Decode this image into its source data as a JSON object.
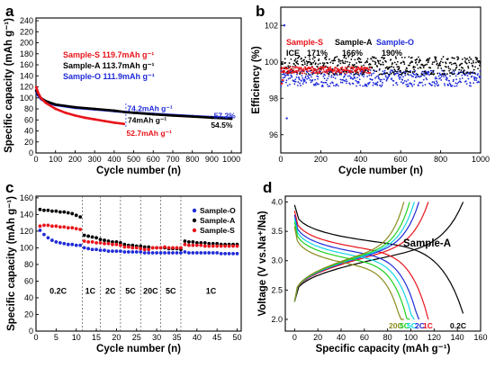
{
  "panels": {
    "a": "a",
    "b": "b",
    "c": "c",
    "d": "d"
  },
  "chart_data": [
    {
      "id": "a",
      "type": "line",
      "xlabel": "Cycle number (n)",
      "ylabel": "Specific capacity (mAh g⁻¹)",
      "xlim": [
        0,
        1050
      ],
      "ylim": [
        0,
        245
      ],
      "xticks": [
        0,
        100,
        200,
        300,
        400,
        500,
        600,
        700,
        800,
        900,
        1000
      ],
      "yticks": [
        0,
        20,
        40,
        60,
        80,
        100,
        120,
        140,
        160,
        180,
        200,
        220,
        240
      ],
      "legend": [
        {
          "text": "Sample-S 119.7mAh g⁻¹",
          "color": "#e8141b"
        },
        {
          "text": "Sample-A 113.7mAh g⁻¹",
          "color": "#000000"
        },
        {
          "text": "Sample-O 111.9mAh g⁻¹",
          "color": "#1f2bd8"
        }
      ],
      "annotations": [
        {
          "text": "74.2mAh g⁻¹",
          "x": 462,
          "y": 74,
          "color": "#1f2bd8"
        },
        {
          "text": "74mAh g⁻¹",
          "x": 470,
          "y": 57,
          "color": "#000000"
        },
        {
          "text": "52.7mAh g⁻¹",
          "x": 462,
          "y": 36,
          "color": "#e8141b"
        },
        {
          "text": "57.2%",
          "x": 905,
          "y": 67,
          "color": "#1f2bd8"
        },
        {
          "text": "54.5%",
          "x": 900,
          "y": 52,
          "color": "#000000"
        }
      ],
      "series": [
        {
          "name": "Sample-S",
          "color": "#e8141b",
          "x": [
            1,
            10,
            25,
            50,
            100,
            150,
            200,
            250,
            300,
            350,
            400,
            450
          ],
          "y": [
            119.7,
            110,
            100,
            91,
            80,
            73,
            68,
            64,
            61,
            58,
            55,
            52.7
          ]
        },
        {
          "name": "Sample-A",
          "color": "#000000",
          "x": [
            1,
            10,
            25,
            50,
            100,
            200,
            300,
            400,
            460,
            500,
            600,
            700,
            800,
            900,
            1000
          ],
          "y": [
            113.7,
            108,
            100,
            94,
            88,
            83,
            80,
            77,
            74,
            73,
            70,
            68,
            66,
            64,
            62
          ]
        },
        {
          "name": "Sample-O",
          "color": "#1f2bd8",
          "x": [
            1,
            10,
            25,
            50,
            100,
            200,
            300,
            400,
            460,
            500,
            600,
            700,
            800,
            900,
            1000
          ],
          "y": [
            111.9,
            105,
            98,
            92,
            87,
            82,
            79,
            76,
            74.2,
            73,
            71,
            69,
            67,
            65,
            64
          ]
        }
      ]
    },
    {
      "id": "b",
      "type": "scatter",
      "xlabel": "Cycle number (n)",
      "ylabel": "Efficiency (%)",
      "xlim": [
        0,
        1000
      ],
      "ylim": [
        95,
        103
      ],
      "xticks": [
        0,
        200,
        400,
        600,
        800,
        1000
      ],
      "yticks": [
        96,
        98,
        100,
        102
      ],
      "legend": [
        {
          "text": "Sample-S",
          "color": "#e8141b"
        },
        {
          "text": "Sample-A",
          "color": "#000000"
        },
        {
          "text": "Sample-O",
          "color": "#1f2bd8"
        }
      ],
      "ice_label": "ICE",
      "ice_values": [
        {
          "text": "171%",
          "color": "#000000"
        },
        {
          "text": "166%",
          "color": "#000000"
        },
        {
          "text": "190%",
          "color": "#000000"
        }
      ],
      "series": [
        {
          "name": "Sample-O",
          "color": "#1f2bd8",
          "x_range": [
            1,
            1000
          ],
          "center": 99.1,
          "spread": 0.45,
          "outliers": [
            [
              18,
              102
            ],
            [
              30,
              96.9
            ]
          ]
        },
        {
          "name": "Sample-A",
          "color": "#000000",
          "x_range": [
            1,
            1000
          ],
          "center": 99.8,
          "spread": 0.5,
          "outliers": []
        },
        {
          "name": "Sample-S",
          "color": "#e8141b",
          "x_range": [
            1,
            450
          ],
          "center": 99.55,
          "spread": 0.18,
          "outliers": [
            [
              5,
              98.8
            ],
            [
              10,
              99
            ]
          ]
        }
      ]
    },
    {
      "id": "c",
      "type": "scatter",
      "xlabel": "Cycle number (n)",
      "ylabel": "Specific capacity (mAh g⁻¹)",
      "xlim": [
        0,
        51
      ],
      "ylim": [
        0,
        162
      ],
      "xticks": [
        0,
        5,
        10,
        15,
        20,
        25,
        30,
        35,
        40,
        45,
        50
      ],
      "yticks": [
        0,
        20,
        40,
        60,
        80,
        100,
        120,
        140,
        160
      ],
      "rate_labels": [
        {
          "text": "0.2C",
          "x": 5.5
        },
        {
          "text": "1C",
          "x": 13.5
        },
        {
          "text": "2C",
          "x": 18.5
        },
        {
          "text": "5C",
          "x": 23.5
        },
        {
          "text": "20C",
          "x": 28.5
        },
        {
          "text": "5C",
          "x": 33.5
        },
        {
          "text": "1C",
          "x": 43.5
        }
      ],
      "dividers": [
        11.5,
        16,
        21,
        26,
        31,
        36
      ],
      "legend": [
        {
          "text": "Sample-O",
          "color": "#1f2bd8"
        },
        {
          "text": "Sample-A",
          "color": "#000000"
        },
        {
          "text": "Sample-S",
          "color": "#e8141b"
        }
      ],
      "series": [
        {
          "name": "Sample-O",
          "color": "#1f2bd8",
          "x": [
            1,
            2,
            3,
            4,
            5,
            6,
            7,
            8,
            9,
            10,
            11,
            12,
            13,
            14,
            15,
            16,
            17,
            18,
            19,
            20,
            21,
            22,
            23,
            24,
            25,
            26,
            27,
            28,
            29,
            30,
            31,
            32,
            33,
            34,
            35,
            36,
            37,
            38,
            39,
            40,
            41,
            42,
            43,
            44,
            45,
            46,
            47,
            48,
            49,
            50
          ],
          "y": [
            121,
            116,
            112,
            109,
            107,
            106,
            105,
            104,
            104,
            103,
            103,
            100,
            99,
            98,
            98,
            97,
            97,
            96,
            96,
            96,
            96,
            95,
            95,
            95,
            95,
            95,
            94,
            94,
            94,
            94,
            94,
            94,
            94,
            94,
            94,
            94,
            95,
            94,
            94,
            94,
            94,
            94,
            94,
            94,
            94,
            93,
            93,
            93,
            93,
            93
          ]
        },
        {
          "name": "Sample-A",
          "color": "#000000",
          "x": [
            1,
            2,
            3,
            4,
            5,
            6,
            7,
            8,
            9,
            10,
            11,
            12,
            13,
            14,
            15,
            16,
            17,
            18,
            19,
            20,
            21,
            22,
            23,
            24,
            25,
            26,
            27,
            28,
            29,
            30,
            31,
            32,
            33,
            34,
            35,
            36,
            37,
            38,
            39,
            40,
            41,
            42,
            43,
            44,
            45,
            46,
            47,
            48,
            49,
            50
          ],
          "y": [
            146,
            145,
            145,
            144,
            144,
            143,
            143,
            142,
            141,
            139,
            137,
            115,
            114,
            113,
            112,
            110,
            109,
            108,
            107,
            107,
            106,
            104,
            103,
            103,
            102,
            102,
            101,
            101,
            100,
            100,
            100,
            100,
            99,
            99,
            99,
            98,
            108,
            107,
            107,
            106,
            106,
            106,
            105,
            105,
            105,
            104,
            104,
            104,
            104,
            104
          ]
        },
        {
          "name": "Sample-S",
          "color": "#e8141b",
          "x": [
            1,
            2,
            3,
            4,
            5,
            6,
            7,
            8,
            9,
            10,
            11,
            12,
            13,
            14,
            15,
            16,
            17,
            18,
            19,
            20,
            21,
            22,
            23,
            24,
            25,
            26,
            27,
            28,
            29,
            30,
            31,
            32,
            33,
            34,
            35,
            36,
            37,
            38,
            39,
            40,
            41,
            42,
            43,
            44,
            45,
            46,
            47,
            48,
            49,
            50
          ],
          "y": [
            126,
            127,
            127,
            126,
            126,
            125,
            125,
            124,
            124,
            123,
            122,
            108,
            107,
            107,
            106,
            106,
            105,
            105,
            104,
            104,
            103,
            101,
            101,
            100,
            100,
            99,
            98,
            98,
            100,
            100,
            100,
            101,
            100,
            100,
            100,
            100,
            104,
            103,
            103,
            103,
            103,
            102,
            102,
            102,
            102,
            102,
            102,
            102,
            102,
            102
          ]
        }
      ]
    },
    {
      "id": "d",
      "type": "line",
      "xlabel": "Specific capacity (mAh g⁻¹)",
      "ylabel": "Voltage (V vs.Na⁺/Na)",
      "xlim": [
        -8,
        160
      ],
      "ylim": [
        1.8,
        4.1
      ],
      "xticks": [
        0,
        20,
        40,
        60,
        80,
        100,
        120,
        140,
        160
      ],
      "yticks": [
        2.0,
        2.5,
        3.0,
        3.5,
        4.0
      ],
      "title": "Sample-A",
      "rate_labels": [
        {
          "text": "20C",
          "color": "#8b8b1e"
        },
        {
          "text": "5C",
          "color": "#1fd11f"
        },
        {
          "text": "5C",
          "color": "#14d6e6"
        },
        {
          "text": "2C",
          "color": "#1f2bd8"
        },
        {
          "text": "1C",
          "color": "#e8141b"
        },
        {
          "text": "0.2C",
          "color": "#000000"
        }
      ],
      "series": [
        {
          "name": "0.2C",
          "color": "#000000",
          "capacity": 145,
          "discharge_start": 3.95,
          "charge_end": 4.0
        },
        {
          "name": "1C",
          "color": "#e8141b",
          "capacity": 115,
          "discharge_start": 3.85,
          "charge_end": 4.0
        },
        {
          "name": "2C",
          "color": "#1f2bd8",
          "capacity": 107,
          "discharge_start": 3.78,
          "charge_end": 4.0
        },
        {
          "name": "5C",
          "color": "#14d6e6",
          "capacity": 103,
          "discharge_start": 3.72,
          "charge_end": 4.0
        },
        {
          "name": "5C",
          "color": "#1fd11f",
          "capacity": 99,
          "discharge_start": 3.66,
          "charge_end": 4.0
        },
        {
          "name": "20C",
          "color": "#8b8b1e",
          "capacity": 94,
          "discharge_start": 3.58,
          "charge_end": 4.0
        }
      ]
    }
  ]
}
